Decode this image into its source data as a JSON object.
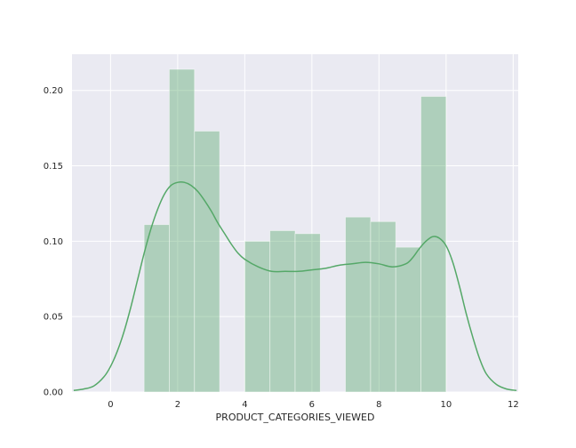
{
  "chart_data": {
    "type": "bar",
    "xlabel": "PRODUCT_CATEGORIES_VIEWED",
    "ylabel": "",
    "xlim": [
      -1.15,
      12.15
    ],
    "ylim": [
      0,
      0.224
    ],
    "x_ticks": [
      "0",
      "2",
      "4",
      "6",
      "8",
      "10",
      "12"
    ],
    "y_ticks": [
      "0.00",
      "0.05",
      "0.10",
      "0.15",
      "0.20"
    ],
    "grid": true,
    "histogram": {
      "bin_edges": [
        1.0,
        1.75,
        2.5,
        3.25,
        4.0,
        4.75,
        5.5,
        6.25,
        7.0,
        7.75,
        8.5,
        9.25,
        10.0
      ],
      "values": [
        0.111,
        0.214,
        0.173,
        0,
        0.1,
        0.107,
        0.105,
        0,
        0.116,
        0.113,
        0.096,
        0.196
      ]
    },
    "kde": {
      "x": [
        -1.1,
        -0.8,
        -0.5,
        -0.2,
        0.0,
        0.2,
        0.4,
        0.6,
        0.8,
        1.0,
        1.2,
        1.4,
        1.6,
        1.8,
        2.0,
        2.2,
        2.4,
        2.6,
        2.8,
        3.0,
        3.2,
        3.4,
        3.6,
        3.8,
        4.0,
        4.4,
        4.8,
        5.2,
        5.6,
        6.0,
        6.4,
        6.8,
        7.2,
        7.6,
        8.0,
        8.4,
        8.8,
        9.0,
        9.2,
        9.4,
        9.6,
        9.8,
        10.0,
        10.2,
        10.4,
        10.6,
        10.8,
        11.0,
        11.2,
        11.5,
        11.8,
        12.1
      ],
      "y": [
        0.001,
        0.002,
        0.004,
        0.01,
        0.017,
        0.027,
        0.04,
        0.056,
        0.074,
        0.092,
        0.108,
        0.121,
        0.131,
        0.137,
        0.139,
        0.139,
        0.137,
        0.133,
        0.127,
        0.12,
        0.112,
        0.105,
        0.098,
        0.092,
        0.088,
        0.083,
        0.08,
        0.08,
        0.08,
        0.081,
        0.082,
        0.084,
        0.085,
        0.086,
        0.085,
        0.083,
        0.085,
        0.089,
        0.095,
        0.1,
        0.103,
        0.102,
        0.097,
        0.086,
        0.07,
        0.052,
        0.036,
        0.022,
        0.012,
        0.005,
        0.002,
        0.001
      ]
    },
    "colors": {
      "background": "#eaeaf2",
      "grid": "#ffffff",
      "bar_fill": "#55a868",
      "bar_opacity": 0.4,
      "kde_line": "#55a868"
    }
  }
}
